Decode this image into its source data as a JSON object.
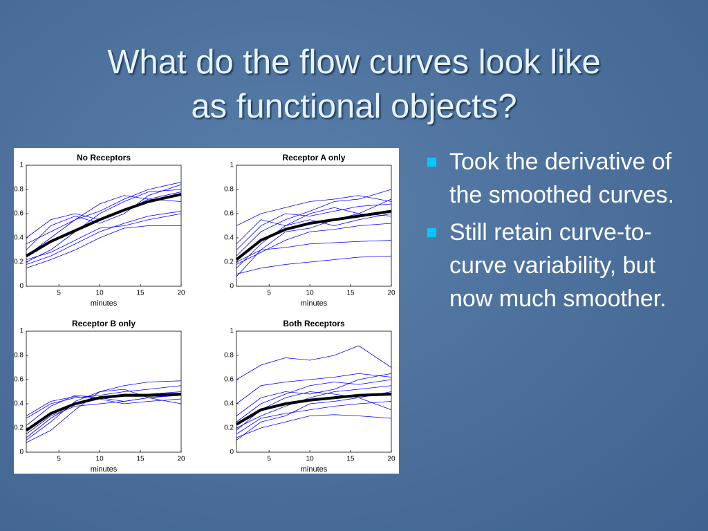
{
  "slide": {
    "title": [
      "What do the flow curves look like",
      "as functional objects?"
    ],
    "bullets": [
      "Took the derivative of the smoothed curves.",
      "Still retain curve-to-curve variability, but now much smoother."
    ]
  },
  "chart_data": [
    {
      "type": "line",
      "title": "No Receptors",
      "xlabel": "minutes",
      "x": [
        1,
        4,
        7,
        10,
        13,
        16,
        20
      ],
      "xlim": [
        1,
        20
      ],
      "xticks": [
        5,
        10,
        15,
        20
      ],
      "ylim": [
        0,
        1
      ],
      "yticks": [
        0,
        0.2,
        0.4,
        0.6,
        0.8,
        1
      ],
      "series": [
        {
          "color": "#0000ff",
          "values": [
            0.35,
            0.45,
            0.55,
            0.62,
            0.72,
            0.8,
            0.86
          ]
        },
        {
          "color": "#0000ff",
          "values": [
            0.2,
            0.3,
            0.45,
            0.6,
            0.7,
            0.78,
            0.8
          ]
        },
        {
          "color": "#0000ff",
          "values": [
            0.18,
            0.25,
            0.35,
            0.45,
            0.52,
            0.58,
            0.62
          ]
        },
        {
          "color": "#0000ff",
          "values": [
            0.3,
            0.5,
            0.58,
            0.52,
            0.6,
            0.75,
            0.84
          ]
        },
        {
          "color": "#0000ff",
          "values": [
            0.22,
            0.28,
            0.38,
            0.48,
            0.5,
            0.55,
            0.6
          ]
        },
        {
          "color": "#0000ff",
          "values": [
            0.4,
            0.55,
            0.6,
            0.55,
            0.62,
            0.72,
            0.78
          ]
        },
        {
          "color": "#0000ff",
          "values": [
            0.25,
            0.4,
            0.55,
            0.68,
            0.75,
            0.72,
            0.7
          ]
        },
        {
          "color": "#0000ff",
          "values": [
            0.15,
            0.22,
            0.3,
            0.4,
            0.48,
            0.5,
            0.5
          ]
        },
        {
          "color": "#000000",
          "values": [
            0.25,
            0.37,
            0.46,
            0.55,
            0.63,
            0.7,
            0.76
          ]
        }
      ]
    },
    {
      "type": "line",
      "title": "Receptor A only",
      "xlabel": "minutes",
      "x": [
        1,
        4,
        7,
        10,
        13,
        16,
        20
      ],
      "xlim": [
        1,
        20
      ],
      "xticks": [
        5,
        10,
        15,
        20
      ],
      "ylim": [
        0,
        1
      ],
      "yticks": [
        0,
        0.2,
        0.4,
        0.6,
        0.8,
        1
      ],
      "series": [
        {
          "color": "#0000ff",
          "values": [
            0.1,
            0.15,
            0.18,
            0.2,
            0.22,
            0.24,
            0.25
          ]
        },
        {
          "color": "#0000ff",
          "values": [
            0.5,
            0.6,
            0.65,
            0.7,
            0.72,
            0.75,
            0.7
          ]
        },
        {
          "color": "#0000ff",
          "values": [
            0.2,
            0.3,
            0.32,
            0.35,
            0.36,
            0.37,
            0.38
          ]
        },
        {
          "color": "#0000ff",
          "values": [
            0.3,
            0.5,
            0.6,
            0.58,
            0.62,
            0.66,
            0.68
          ]
        },
        {
          "color": "#0000ff",
          "values": [
            0.15,
            0.35,
            0.5,
            0.55,
            0.5,
            0.55,
            0.6
          ]
        },
        {
          "color": "#0000ff",
          "values": [
            0.25,
            0.45,
            0.55,
            0.62,
            0.7,
            0.72,
            0.8
          ]
        },
        {
          "color": "#0000ff",
          "values": [
            0.08,
            0.3,
            0.45,
            0.48,
            0.55,
            0.6,
            0.58
          ]
        },
        {
          "color": "#0000ff",
          "values": [
            0.35,
            0.55,
            0.5,
            0.6,
            0.65,
            0.6,
            0.72
          ]
        },
        {
          "color": "#0000ff",
          "values": [
            0.18,
            0.28,
            0.38,
            0.45,
            0.47,
            0.5,
            0.52
          ]
        },
        {
          "color": "#000000",
          "values": [
            0.22,
            0.38,
            0.47,
            0.52,
            0.55,
            0.58,
            0.62
          ]
        }
      ]
    },
    {
      "type": "line",
      "title": "Receptor B only",
      "xlabel": "minutes",
      "x": [
        1,
        4,
        7,
        10,
        13,
        16,
        20
      ],
      "xlim": [
        1,
        20
      ],
      "xticks": [
        5,
        10,
        15,
        20
      ],
      "ylim": [
        0,
        1
      ],
      "yticks": [
        0,
        0.2,
        0.4,
        0.6,
        0.8,
        1
      ],
      "series": [
        {
          "color": "#0000ff",
          "values": [
            0.1,
            0.25,
            0.42,
            0.5,
            0.55,
            0.58,
            0.59
          ]
        },
        {
          "color": "#0000ff",
          "values": [
            0.28,
            0.4,
            0.45,
            0.47,
            0.5,
            0.52,
            0.55
          ]
        },
        {
          "color": "#0000ff",
          "values": [
            0.08,
            0.18,
            0.35,
            0.5,
            0.52,
            0.45,
            0.47
          ]
        },
        {
          "color": "#0000ff",
          "values": [
            0.22,
            0.38,
            0.47,
            0.45,
            0.42,
            0.45,
            0.4
          ]
        },
        {
          "color": "#0000ff",
          "values": [
            0.12,
            0.28,
            0.4,
            0.44,
            0.48,
            0.48,
            0.5
          ]
        },
        {
          "color": "#0000ff",
          "values": [
            0.3,
            0.42,
            0.46,
            0.44,
            0.4,
            0.42,
            0.44
          ]
        },
        {
          "color": "#0000ff",
          "values": [
            0.15,
            0.3,
            0.38,
            0.4,
            0.42,
            0.45,
            0.48
          ]
        },
        {
          "color": "#000000",
          "values": [
            0.18,
            0.32,
            0.4,
            0.45,
            0.47,
            0.47,
            0.48
          ]
        }
      ]
    },
    {
      "type": "line",
      "title": "Both Receptors",
      "xlabel": "minutes",
      "x": [
        1,
        4,
        7,
        10,
        13,
        16,
        20
      ],
      "xlim": [
        1,
        20
      ],
      "xticks": [
        5,
        10,
        15,
        20
      ],
      "ylim": [
        0,
        1
      ],
      "yticks": [
        0,
        0.2,
        0.4,
        0.6,
        0.8,
        1
      ],
      "series": [
        {
          "color": "#0000ff",
          "values": [
            0.6,
            0.72,
            0.78,
            0.76,
            0.8,
            0.88,
            0.7
          ]
        },
        {
          "color": "#0000ff",
          "values": [
            0.12,
            0.2,
            0.25,
            0.3,
            0.31,
            0.3,
            0.28
          ]
        },
        {
          "color": "#0000ff",
          "values": [
            0.4,
            0.55,
            0.58,
            0.6,
            0.62,
            0.65,
            0.62
          ]
        },
        {
          "color": "#0000ff",
          "values": [
            0.2,
            0.3,
            0.38,
            0.45,
            0.5,
            0.52,
            0.55
          ]
        },
        {
          "color": "#0000ff",
          "values": [
            0.15,
            0.28,
            0.32,
            0.35,
            0.38,
            0.4,
            0.42
          ]
        },
        {
          "color": "#0000ff",
          "values": [
            0.3,
            0.45,
            0.5,
            0.48,
            0.52,
            0.6,
            0.65
          ]
        },
        {
          "color": "#0000ff",
          "values": [
            0.18,
            0.35,
            0.45,
            0.5,
            0.48,
            0.45,
            0.5
          ]
        },
        {
          "color": "#0000ff",
          "values": [
            0.25,
            0.4,
            0.48,
            0.55,
            0.58,
            0.56,
            0.6
          ]
        },
        {
          "color": "#0000ff",
          "values": [
            0.1,
            0.25,
            0.3,
            0.4,
            0.42,
            0.45,
            0.35
          ]
        },
        {
          "color": "#000000",
          "values": [
            0.23,
            0.35,
            0.4,
            0.43,
            0.45,
            0.47,
            0.48
          ]
        }
      ]
    }
  ]
}
